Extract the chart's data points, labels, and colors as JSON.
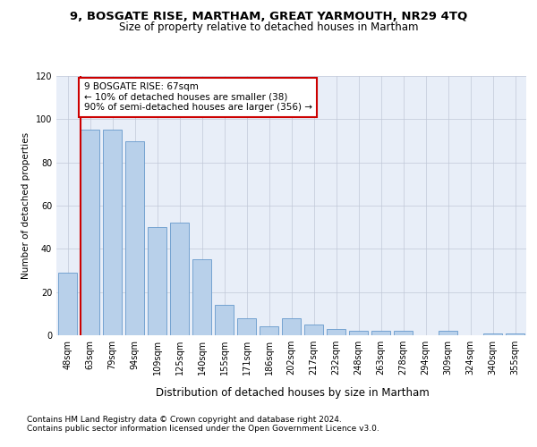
{
  "title1": "9, BOSGATE RISE, MARTHAM, GREAT YARMOUTH, NR29 4TQ",
  "title2": "Size of property relative to detached houses in Martham",
  "xlabel": "Distribution of detached houses by size in Martham",
  "ylabel": "Number of detached properties",
  "categories": [
    "48sqm",
    "63sqm",
    "79sqm",
    "94sqm",
    "109sqm",
    "125sqm",
    "140sqm",
    "155sqm",
    "171sqm",
    "186sqm",
    "202sqm",
    "217sqm",
    "232sqm",
    "248sqm",
    "263sqm",
    "278sqm",
    "294sqm",
    "309sqm",
    "324sqm",
    "340sqm",
    "355sqm"
  ],
  "values": [
    29,
    95,
    95,
    90,
    50,
    52,
    35,
    14,
    8,
    4,
    8,
    5,
    3,
    2,
    2,
    2,
    0,
    2,
    0,
    1,
    1
  ],
  "bar_color": "#b8d0ea",
  "bar_edge_color": "#6699cc",
  "highlight_bar_index": 1,
  "highlight_color": "#cc0000",
  "annotation_text": "9 BOSGATE RISE: 67sqm\n← 10% of detached houses are smaller (38)\n90% of semi-detached houses are larger (356) →",
  "annotation_box_color": "#ffffff",
  "annotation_box_edge_color": "#cc0000",
  "ylim": [
    0,
    120
  ],
  "yticks": [
    0,
    20,
    40,
    60,
    80,
    100,
    120
  ],
  "footer1": "Contains HM Land Registry data © Crown copyright and database right 2024.",
  "footer2": "Contains public sector information licensed under the Open Government Licence v3.0.",
  "background_color": "#e8eef8",
  "grid_color": "#c0c8d8",
  "title1_fontsize": 9.5,
  "title2_fontsize": 8.5,
  "xlabel_fontsize": 8.5,
  "ylabel_fontsize": 7.5,
  "tick_fontsize": 7,
  "annotation_fontsize": 7.5,
  "footer_fontsize": 6.5
}
